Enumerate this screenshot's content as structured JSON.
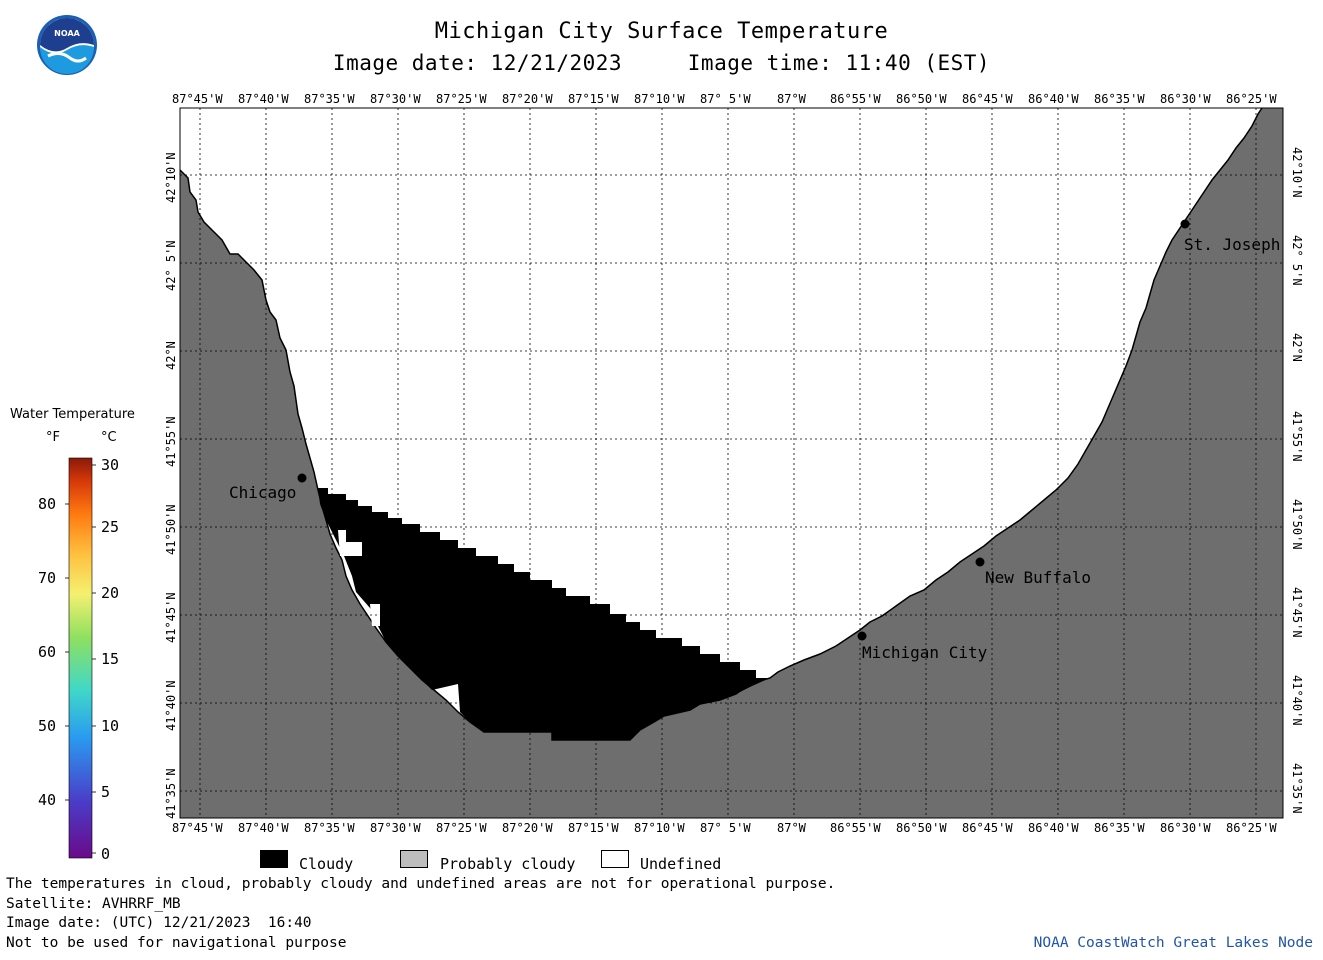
{
  "header": {
    "title": "Michigan City Surface Temperature",
    "subtitle": "Image date: 12/21/2023     Image time: 11:40 (EST)",
    "logo_text": "NOAA"
  },
  "map": {
    "lon_labels": [
      "87°45'W",
      "87°40'W",
      "87°35'W",
      "87°30'W",
      "87°25'W",
      "87°20'W",
      "87°15'W",
      "87°10'W",
      "87° 5'W",
      "87°W",
      "86°55'W",
      "86°50'W",
      "86°45'W",
      "86°40'W",
      "86°35'W",
      "86°30'W",
      "86°25'W"
    ],
    "lat_labels": [
      "42°10'N",
      "42° 5'N",
      "42°N",
      "41°55'N",
      "41°50'N",
      "41°45'N",
      "41°40'N",
      "41°35'N"
    ],
    "cities": [
      {
        "name": "Chicago",
        "lon": "87°37'W",
        "lat": "41°52'N"
      },
      {
        "name": "Michigan City",
        "lon": "86°54'W",
        "lat": "41°43'N"
      },
      {
        "name": "New Buffalo",
        "lon": "86°45'W",
        "lat": "41°47'N"
      },
      {
        "name": "St. Joseph",
        "lon": "86°29'W",
        "lat": "42°06'N"
      }
    ],
    "colors": {
      "land": "#6e6e6e",
      "cloud": "#000000",
      "undefined": "#ffffff",
      "grid": "#000000"
    }
  },
  "legend": {
    "title": "Water Temperature",
    "unit_f": "°F",
    "unit_c": "°C",
    "f_ticks": [
      "80",
      "70",
      "60",
      "50",
      "40"
    ],
    "c_ticks": [
      "30",
      "25",
      "20",
      "15",
      "10",
      "5",
      "0"
    ]
  },
  "key": {
    "cloudy": "Cloudy",
    "probably_cloudy": "Probably cloudy",
    "undefined": "Undefined",
    "cloudy_color": "#000000",
    "probably_cloudy_color": "#bdbdbd",
    "undefined_color": "#ffffff"
  },
  "footer": {
    "line1": "The temperatures in cloud, probably cloudy and undefined areas are not for operational purpose.",
    "line2": "Satellite: AVHRRF_MB",
    "line3": "Image date: (UTC) 12/21/2023  16:40",
    "line4": "Not to be used for navigational purpose",
    "credit": "NOAA CoastWatch Great Lakes Node"
  }
}
